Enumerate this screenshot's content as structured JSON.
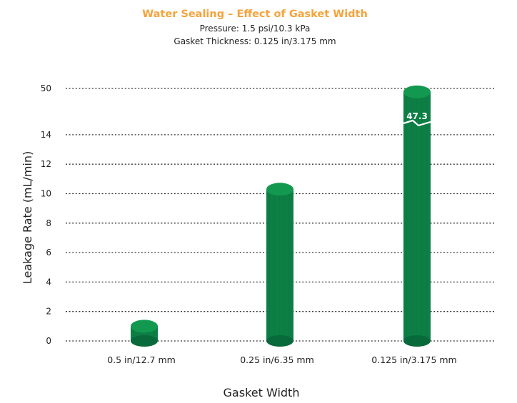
{
  "chart_data": {
    "type": "bar",
    "title": "Water Sealing – Effect of Gasket Width",
    "subtitle_lines": [
      "Pressure: 1.5 psi/10.3 kPa",
      "Gasket Thickness: 0.125 in/3.175 mm"
    ],
    "xlabel": "Gasket Width",
    "ylabel": "Leakage Rate (mL/min)",
    "categories": [
      "0.5 in/12.7 mm",
      "0.25 in/6.35 mm",
      "0.125 in/3.175 mm"
    ],
    "values": [
      1.0,
      10.3,
      47.3
    ],
    "data_labels": [
      "",
      "",
      "47.3"
    ],
    "y_ticks": [
      "0",
      "2",
      "4",
      "6",
      "8",
      "10",
      "12",
      "14",
      "50"
    ],
    "y_axis_break": {
      "from": 14,
      "to": 50
    },
    "ylim": [
      0,
      50
    ],
    "grid": true,
    "colors": {
      "bar": "#0d7f45",
      "bar_dark": "#08693a",
      "bar_top": "#12994f",
      "title": "#f5a33c"
    }
  }
}
